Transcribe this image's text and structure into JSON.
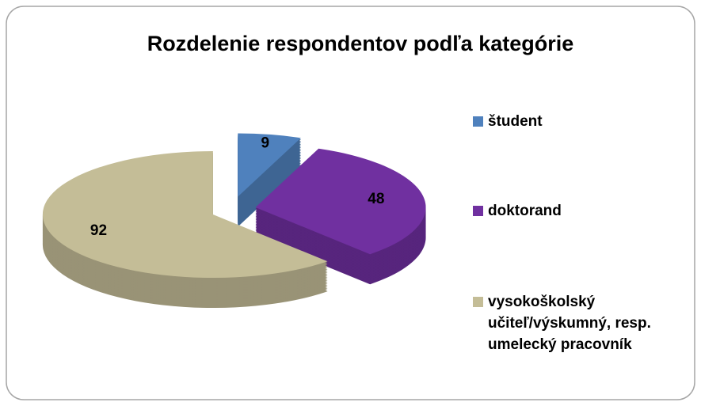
{
  "chart_data": {
    "type": "pie3d",
    "title": "Rozdelenie respondentov podľa kategórie",
    "categories": [
      "študent",
      "doktorand",
      "vysokoškolský učiteľ/výskumný, resp. umelecký pracovník"
    ],
    "values": [
      9,
      48,
      92
    ],
    "colors": [
      "#4f81bd",
      "#7030a0",
      "#c4bd97"
    ],
    "legend": "right"
  }
}
